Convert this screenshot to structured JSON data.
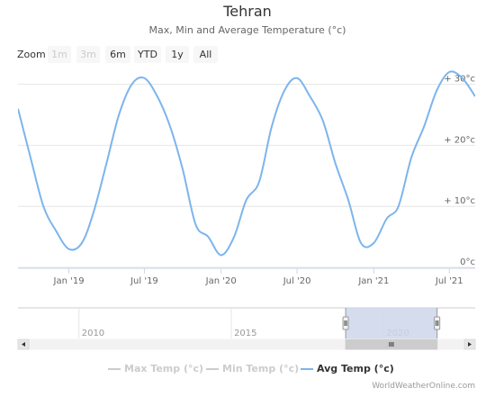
{
  "chart_data": {
    "type": "line",
    "title": "Tehran",
    "subtitle": "Max, Min and Average Temperature (°c)",
    "zoom": {
      "label": "Zoom",
      "buttons": [
        {
          "label": "1m",
          "enabled": false
        },
        {
          "label": "3m",
          "enabled": false
        },
        {
          "label": "6m",
          "enabled": true
        },
        {
          "label": "YTD",
          "enabled": true
        },
        {
          "label": "1y",
          "enabled": true
        },
        {
          "label": "All",
          "enabled": true
        }
      ]
    },
    "x_axis": {
      "type": "datetime",
      "range": [
        "2018-09-01",
        "2021-09-01"
      ],
      "tick_labels": [
        {
          "date": "2019-01-01",
          "label": "Jan '19"
        },
        {
          "date": "2019-07-01",
          "label": "Jul '19"
        },
        {
          "date": "2020-01-01",
          "label": "Jan '20"
        },
        {
          "date": "2020-07-01",
          "label": "Jul '20"
        },
        {
          "date": "2021-01-01",
          "label": "Jan '21"
        },
        {
          "date": "2021-07-01",
          "label": "Jul '21"
        }
      ]
    },
    "y_axis": {
      "range": [
        0,
        32
      ],
      "position": "right",
      "tick_labels": [
        {
          "value": 0,
          "label": "0°c"
        },
        {
          "value": 10,
          "label": "+ 10°c"
        },
        {
          "value": 20,
          "label": "+ 20°c"
        },
        {
          "value": 30,
          "label": "+ 30°c"
        }
      ],
      "grid": true
    },
    "series": [
      {
        "name": "Max Temp (°c)",
        "visible": false,
        "color": "#cccccc",
        "values": []
      },
      {
        "name": "Min Temp (°c)",
        "visible": false,
        "color": "#cccccc",
        "values": []
      },
      {
        "name": "Avg Temp (°c)",
        "visible": true,
        "color": "#7cb5ec",
        "values": [
          [
            "2018-09-01",
            26
          ],
          [
            "2018-10-01",
            18
          ],
          [
            "2018-11-01",
            10
          ],
          [
            "2018-12-01",
            6
          ],
          [
            "2019-01-01",
            3
          ],
          [
            "2019-02-01",
            4
          ],
          [
            "2019-03-01",
            9
          ],
          [
            "2019-04-01",
            17
          ],
          [
            "2019-05-01",
            25
          ],
          [
            "2019-06-01",
            30
          ],
          [
            "2019-07-01",
            31
          ],
          [
            "2019-08-01",
            28
          ],
          [
            "2019-09-01",
            23
          ],
          [
            "2019-10-01",
            16
          ],
          [
            "2019-11-01",
            7
          ],
          [
            "2019-12-01",
            5
          ],
          [
            "2020-01-01",
            2
          ],
          [
            "2020-02-01",
            5
          ],
          [
            "2020-03-01",
            11
          ],
          [
            "2020-04-01",
            14
          ],
          [
            "2020-05-01",
            23
          ],
          [
            "2020-06-01",
            29
          ],
          [
            "2020-07-01",
            31
          ],
          [
            "2020-08-01",
            28
          ],
          [
            "2020-09-01",
            24
          ],
          [
            "2020-10-01",
            17
          ],
          [
            "2020-11-01",
            11
          ],
          [
            "2020-12-01",
            4
          ],
          [
            "2021-01-01",
            4
          ],
          [
            "2021-02-01",
            8
          ],
          [
            "2021-03-01",
            10
          ],
          [
            "2021-04-01",
            18
          ],
          [
            "2021-05-01",
            23
          ],
          [
            "2021-06-01",
            29
          ],
          [
            "2021-07-01",
            32
          ],
          [
            "2021-08-01",
            31
          ],
          [
            "2021-09-01",
            28
          ]
        ]
      }
    ],
    "navigator": {
      "tick_labels": [
        {
          "year": 2010,
          "label": "2010"
        },
        {
          "year": 2015,
          "label": "2015"
        },
        {
          "year": 2020,
          "label": "2020"
        }
      ],
      "range_years": [
        2008,
        2023
      ],
      "selected_years": [
        2018.75,
        2021.75
      ]
    },
    "legend": {
      "placement": "bottom-center"
    },
    "credits": "WorldWeatherOnline.com",
    "colors": {
      "accent": "#7cb5ec",
      "grid": "#e6e6e6",
      "selection": "#ccd6eb"
    }
  }
}
